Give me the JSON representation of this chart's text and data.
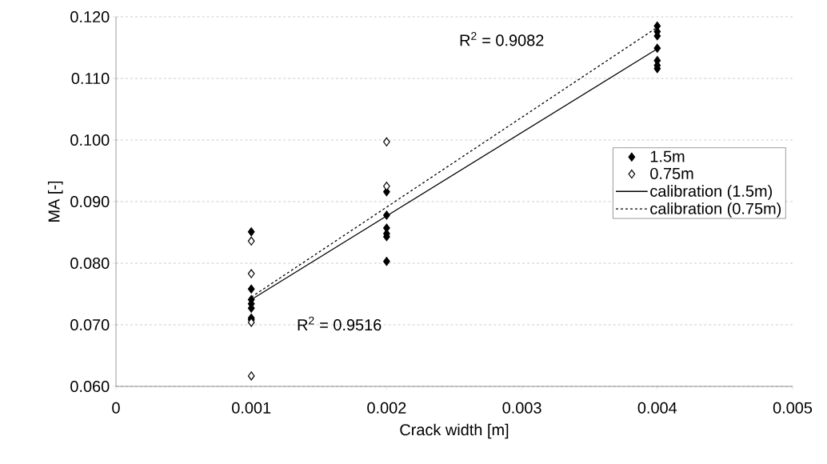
{
  "chart_data": {
    "type": "scatter",
    "xlabel": "Crack width [m]",
    "ylabel": "MA [-]",
    "xlim": [
      0,
      0.005
    ],
    "ylim": [
      0.06,
      0.12
    ],
    "xticks": [
      {
        "value": 0,
        "label": "0"
      },
      0.001,
      0.002,
      0.003,
      0.004,
      0.005
    ],
    "yticks": [
      {
        "value": 0.06,
        "label": "0.060"
      },
      {
        "value": 0.07,
        "label": "0.070"
      },
      {
        "value": 0.08,
        "label": "0.080"
      },
      {
        "value": 0.09,
        "label": "0.090"
      },
      {
        "value": 0.1,
        "label": "0.100"
      },
      {
        "value": 0.11,
        "label": "0.110"
      },
      {
        "value": 0.12,
        "label": "0.120"
      }
    ],
    "grid": "y",
    "legend": "right",
    "annotations": [
      "R$^{2}$ = 0.9082",
      "R$^{2}$ = 0.9516"
    ],
    "series": [
      {
        "name": "1.5m",
        "marker": "diamond",
        "color": "#000000",
        "x": [
          0.001,
          0.001,
          0.001,
          0.001,
          0.001,
          0.001,
          0.001,
          0.002,
          0.002,
          0.002,
          0.002,
          0.002,
          0.002,
          0.004,
          0.004,
          0.004,
          0.004,
          0.004,
          0.004,
          0.004
        ],
        "values": [
          0.0851,
          0.0758,
          0.0741,
          0.0734,
          0.0727,
          0.0711,
          0.0708,
          0.0916,
          0.0878,
          0.0857,
          0.0848,
          0.0843,
          0.0803,
          0.1185,
          0.1176,
          0.1169,
          0.1149,
          0.1129,
          0.1121,
          0.1116
        ]
      },
      {
        "name": "0.75m",
        "marker": "diamond",
        "color": "#ffffff",
        "x": [
          0.001,
          0.001,
          0.001,
          0.001,
          0.002,
          0.002
        ],
        "values": [
          0.0836,
          0.0783,
          0.0704,
          0.0617,
          0.0997,
          0.0925
        ]
      },
      {
        "name": "calibration (1.5m)",
        "type": "line",
        "marker": "none",
        "line_style": "solid",
        "color": "#000000",
        "x": [
          0.001,
          0.004
        ],
        "values": [
          0.0741,
          0.1148
        ]
      },
      {
        "name": "calibration (0.75m)",
        "type": "line",
        "marker": "none",
        "line_style": "dotted",
        "color": "#000000",
        "x": [
          0.001,
          0.004
        ],
        "values": [
          0.0745,
          0.1183
        ]
      }
    ]
  }
}
